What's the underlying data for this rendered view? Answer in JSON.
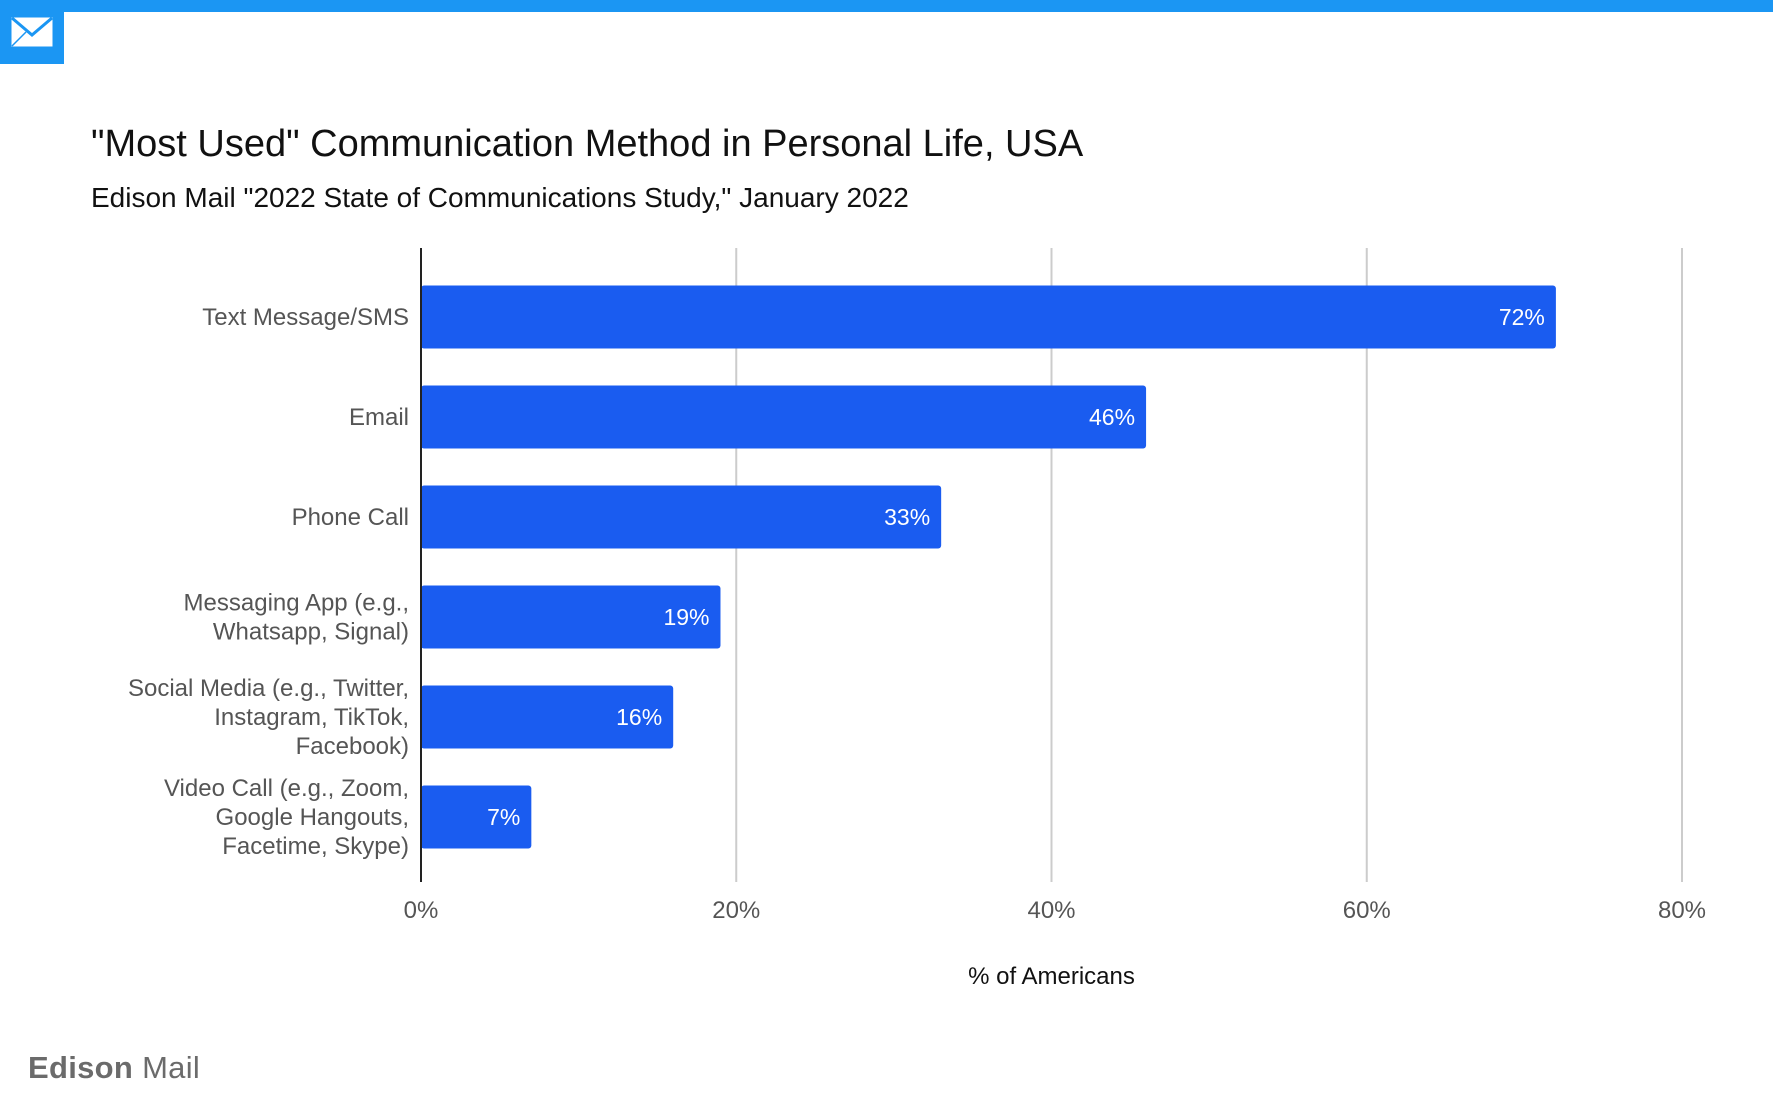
{
  "brand": {
    "logo_icon": "envelope-icon",
    "accent_color": "#1b96f3",
    "name_bold": "Edison",
    "name_light": "Mail"
  },
  "chart_data": {
    "type": "bar",
    "orientation": "horizontal",
    "title": "\"Most Used\" Communication Method in Personal Life, USA",
    "subtitle": "Edison Mail \"2022 State of Communications Study,\" January 2022",
    "categories": [
      [
        "Text Message/SMS"
      ],
      [
        "Email"
      ],
      [
        "Phone Call"
      ],
      [
        "Messaging App (e.g.,",
        "Whatsapp, Signal)"
      ],
      [
        "Social Media (e.g., Twitter,",
        "Instagram, TikTok,",
        "Facebook)"
      ],
      [
        "Video Call (e.g., Zoom,",
        "Google Hangouts,",
        "Facetime, Skype)"
      ]
    ],
    "values": [
      72,
      46,
      33,
      19,
      16,
      7
    ],
    "data_labels": [
      "72%",
      "46%",
      "33%",
      "19%",
      "16%",
      "7%"
    ],
    "xlabel": "% of Americans",
    "ylabel": "",
    "xlim": [
      0,
      80
    ],
    "xticks": [
      0,
      20,
      40,
      60,
      80
    ],
    "xtick_labels": [
      "0%",
      "20%",
      "40%",
      "60%",
      "80%"
    ],
    "grid": true,
    "bar_color": "#1a5cf0",
    "gridline_color": "#cccccc"
  }
}
